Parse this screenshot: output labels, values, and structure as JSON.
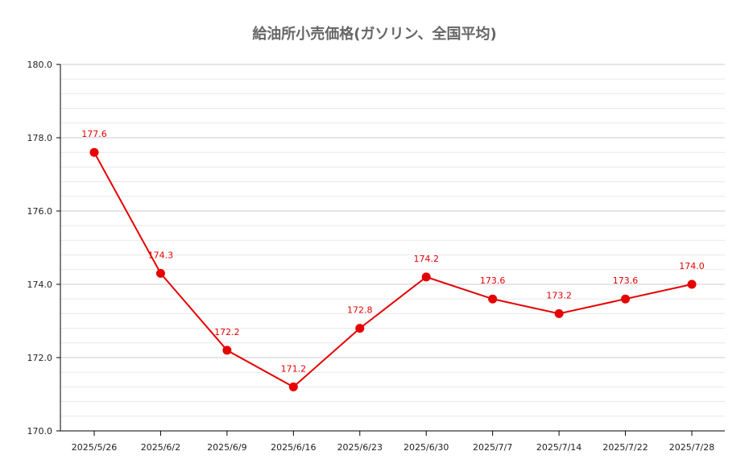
{
  "chart_data": {
    "type": "line",
    "title": "給油所小売価格(ガソリン、全国平均)",
    "xlabel": "",
    "ylabel": "",
    "categories": [
      "2025/5/26",
      "2025/6/2",
      "2025/6/9",
      "2025/6/16",
      "2025/6/23",
      "2025/6/30",
      "2025/7/7",
      "2025/7/14",
      "2025/7/22",
      "2025/7/28"
    ],
    "series": [
      {
        "values": [
          177.6,
          174.3,
          172.2,
          171.2,
          172.8,
          174.2,
          173.6,
          173.2,
          173.6,
          174.0
        ]
      }
    ],
    "ylim": [
      170,
      180
    ],
    "yticks": [
      170,
      172,
      174,
      176,
      178,
      180
    ],
    "ytick_labels": [
      "170.0",
      "172.0",
      "174.0",
      "176.0",
      "178.0",
      "180.0"
    ],
    "minor_grid_step": 0.4,
    "grid": true,
    "legend": "none",
    "colors": {
      "line": "#e60000",
      "grid_major": "#cccccc",
      "grid_minor": "#e8e8e8",
      "axis": "#000000",
      "title": "#666666"
    }
  }
}
